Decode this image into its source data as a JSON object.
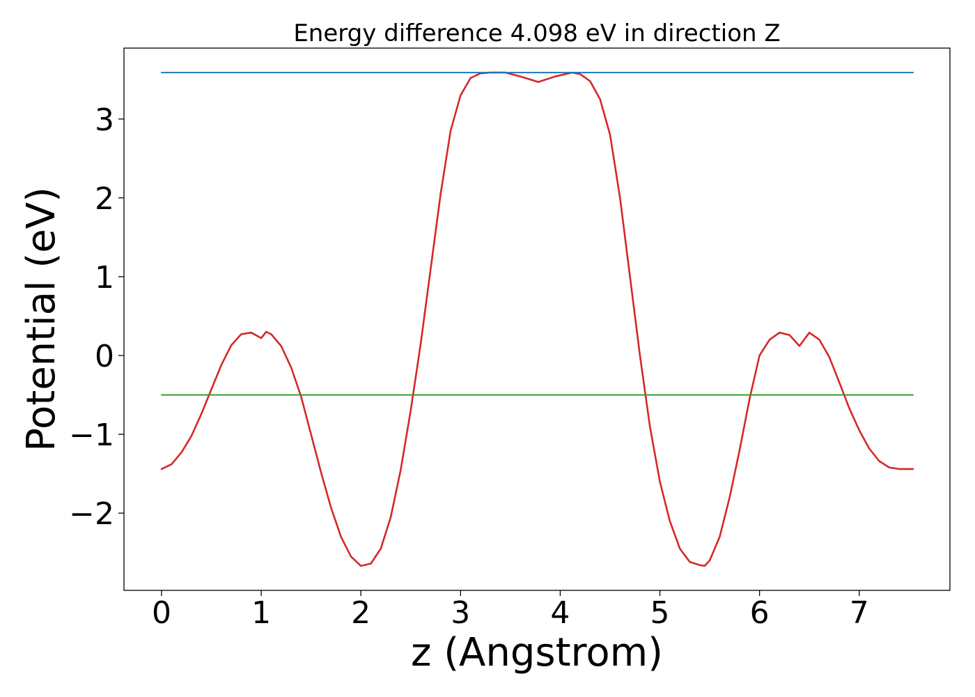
{
  "chart_data": {
    "type": "line",
    "title": "Energy difference 4.098 eV in direction Z",
    "xlabel": "z (Angstrom)",
    "ylabel": "Potential (eV)",
    "xlim": [
      -0.377,
      7.91
    ],
    "ylim": [
      -2.98,
      3.9
    ],
    "xticks": [
      0,
      1,
      2,
      3,
      4,
      5,
      6,
      7
    ],
    "xtick_labels": [
      "0",
      "1",
      "2",
      "3",
      "4",
      "5",
      "6",
      "7"
    ],
    "yticks": [
      -2,
      -1,
      0,
      1,
      2,
      3
    ],
    "ytick_labels": [
      "−2",
      "−1",
      "0",
      "1",
      "2",
      "3"
    ],
    "grid": false,
    "series": [
      {
        "color": "#d62728",
        "x": [
          0.0,
          0.1,
          0.2,
          0.3,
          0.4,
          0.5,
          0.6,
          0.7,
          0.8,
          0.9,
          1.0,
          1.05,
          1.1,
          1.2,
          1.3,
          1.4,
          1.5,
          1.6,
          1.7,
          1.8,
          1.9,
          2.0,
          2.1,
          2.2,
          2.3,
          2.4,
          2.5,
          2.6,
          2.7,
          2.8,
          2.9,
          3.0,
          3.1,
          3.2,
          3.3,
          3.45,
          3.6,
          3.78,
          3.95,
          4.12,
          4.2,
          4.3,
          4.4,
          4.5,
          4.6,
          4.7,
          4.8,
          4.9,
          5.0,
          5.1,
          5.2,
          5.3,
          5.4,
          5.45,
          5.5,
          5.6,
          5.7,
          5.8,
          5.9,
          6.0,
          6.1,
          6.2,
          6.3,
          6.4,
          6.5,
          6.6,
          6.7,
          6.8,
          6.9,
          7.0,
          7.1,
          7.2,
          7.3,
          7.4,
          7.5,
          7.54
        ],
        "y": [
          -1.44,
          -1.38,
          -1.23,
          -1.02,
          -0.74,
          -0.43,
          -0.12,
          0.13,
          0.27,
          0.29,
          0.22,
          0.3,
          0.27,
          0.12,
          -0.15,
          -0.52,
          -1.0,
          -1.48,
          -1.93,
          -2.3,
          -2.55,
          -2.67,
          -2.64,
          -2.45,
          -2.05,
          -1.45,
          -0.7,
          0.15,
          1.1,
          2.05,
          2.85,
          3.3,
          3.52,
          3.58,
          3.59,
          3.59,
          3.54,
          3.47,
          3.54,
          3.59,
          3.57,
          3.48,
          3.25,
          2.8,
          2.0,
          1.0,
          0.0,
          -0.9,
          -1.6,
          -2.1,
          -2.45,
          -2.62,
          -2.66,
          -2.67,
          -2.6,
          -2.3,
          -1.8,
          -1.2,
          -0.55,
          0.0,
          0.2,
          0.29,
          0.26,
          0.12,
          0.29,
          0.2,
          -0.02,
          -0.34,
          -0.67,
          -0.95,
          -1.18,
          -1.34,
          -1.42,
          -1.44,
          -1.44,
          -1.44
        ]
      },
      {
        "color": "#1f77b4",
        "x": [
          0.0,
          7.54
        ],
        "y": [
          3.59,
          3.59
        ]
      },
      {
        "color": "#2ca02c",
        "x": [
          0.0,
          7.54
        ],
        "y": [
          -0.5,
          -0.5
        ]
      }
    ]
  }
}
